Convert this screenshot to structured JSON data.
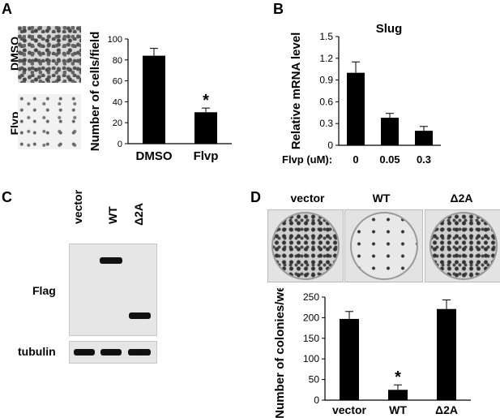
{
  "panels": {
    "A": {
      "letter": "A",
      "image_labels": [
        "DMSO",
        "Flvp"
      ],
      "significance": "*"
    },
    "B": {
      "letter": "B",
      "chart_title": "Slug",
      "x_prefix": "Flvp (uM):"
    },
    "C": {
      "letter": "C",
      "lanes": [
        "vector",
        "WT",
        "Δ2A"
      ],
      "rows": [
        "Flag",
        "tubulin"
      ]
    },
    "D": {
      "letter": "D",
      "dish_labels": [
        "vector",
        "WT",
        "Δ2A"
      ],
      "significance": "*"
    }
  },
  "chart_data": [
    {
      "panel": "A",
      "type": "bar",
      "categories": [
        "DMSO",
        "Flvp"
      ],
      "values": [
        84,
        30
      ],
      "errors": [
        7,
        4
      ],
      "ylabel": "Number of cells/field",
      "ylim": [
        0,
        100
      ],
      "yticks": [
        "0",
        "20",
        "40",
        "60",
        "80",
        "100"
      ],
      "bar_color": "#000000"
    },
    {
      "panel": "B",
      "type": "bar",
      "title": "Slug",
      "categories": [
        "0",
        "0.05",
        "0.3"
      ],
      "values": [
        1.0,
        0.38,
        0.2
      ],
      "errors": [
        0.15,
        0.06,
        0.06
      ],
      "ylabel": "Relative mRNA level",
      "ylim": [
        0,
        1.5
      ],
      "yticks": [
        "0",
        "0.3",
        "0.6",
        "0.9",
        "1.2",
        "1.5"
      ],
      "bar_color": "#000000"
    },
    {
      "panel": "D",
      "type": "bar",
      "categories": [
        "vector",
        "WT",
        "Δ2A"
      ],
      "values": [
        197,
        25,
        221
      ],
      "errors": [
        18,
        12,
        22
      ],
      "ylabel": "Number of colonies/well",
      "ylim": [
        0,
        250
      ],
      "yticks": [
        "0",
        "50",
        "100",
        "150",
        "200",
        "250"
      ],
      "bar_color": "#000000"
    }
  ]
}
